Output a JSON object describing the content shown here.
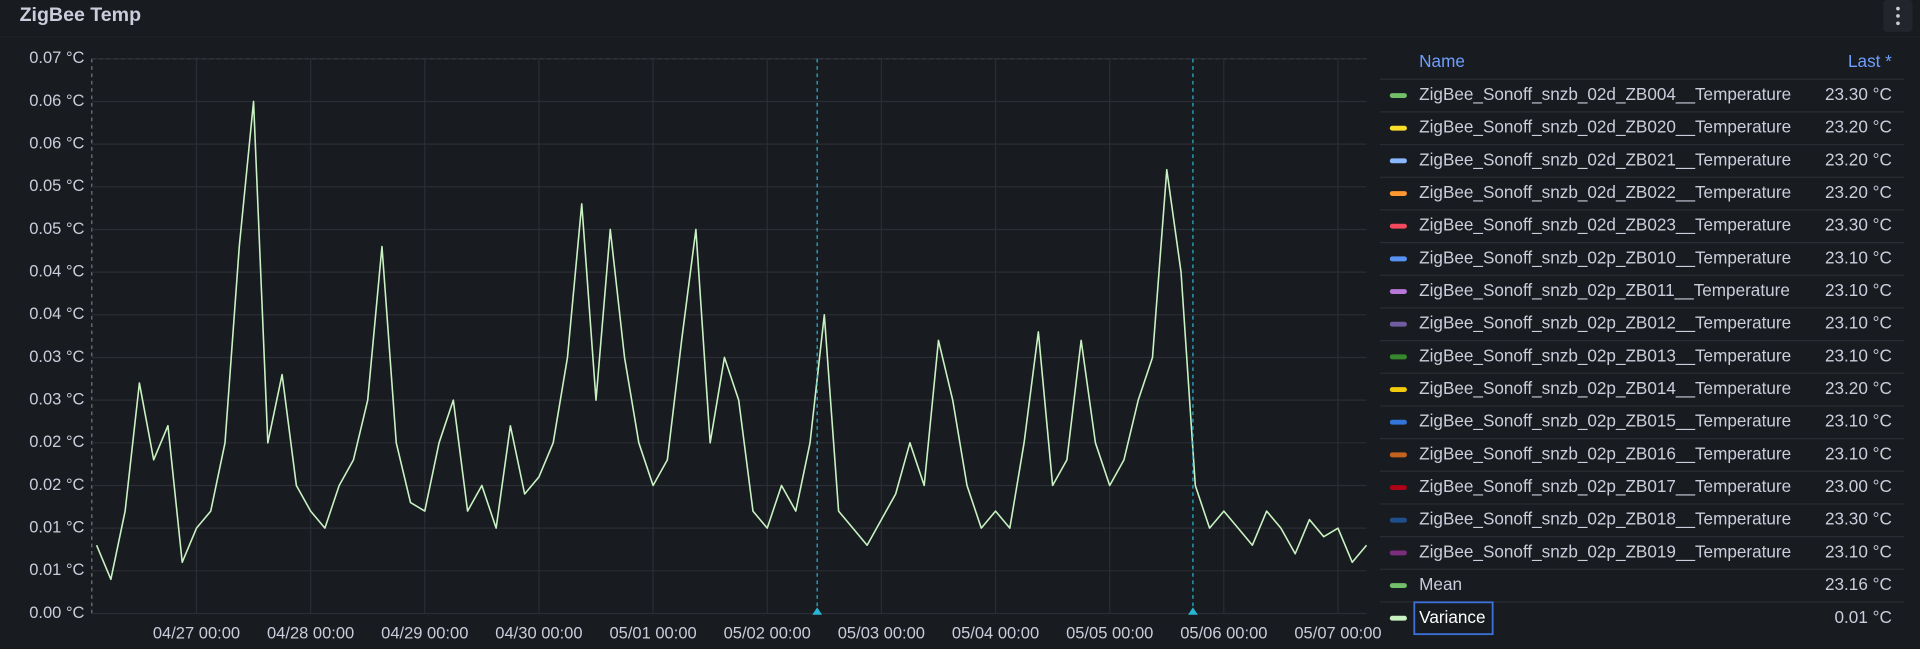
{
  "panel_title": "ZigBee Temp",
  "chart_data": {
    "type": "line",
    "legend_columns": [
      "Name",
      "Last *"
    ],
    "series": [
      {
        "name": "ZigBee_Sonoff_snzb_02d_ZB004__Temperature",
        "color": "#73bf69",
        "last": "23.30 °C"
      },
      {
        "name": "ZigBee_Sonoff_snzb_02d_ZB020__Temperature",
        "color": "#fade2a",
        "last": "23.20 °C"
      },
      {
        "name": "ZigBee_Sonoff_snzb_02d_ZB021__Temperature",
        "color": "#8ab8ff",
        "last": "23.20 °C"
      },
      {
        "name": "ZigBee_Sonoff_snzb_02d_ZB022__Temperature",
        "color": "#ff9830",
        "last": "23.20 °C"
      },
      {
        "name": "ZigBee_Sonoff_snzb_02d_ZB023__Temperature",
        "color": "#f2495c",
        "last": "23.30 °C"
      },
      {
        "name": "ZigBee_Sonoff_snzb_02p_ZB010__Temperature",
        "color": "#5794f2",
        "last": "23.10 °C"
      },
      {
        "name": "ZigBee_Sonoff_snzb_02p_ZB011__Temperature",
        "color": "#b877d9",
        "last": "23.10 °C"
      },
      {
        "name": "ZigBee_Sonoff_snzb_02p_ZB012__Temperature",
        "color": "#705da0",
        "last": "23.10 °C"
      },
      {
        "name": "ZigBee_Sonoff_snzb_02p_ZB013__Temperature",
        "color": "#37872d",
        "last": "23.10 °C"
      },
      {
        "name": "ZigBee_Sonoff_snzb_02p_ZB014__Temperature",
        "color": "#f2cc0c",
        "last": "23.20 °C"
      },
      {
        "name": "ZigBee_Sonoff_snzb_02p_ZB015__Temperature",
        "color": "#3274d9",
        "last": "23.10 °C"
      },
      {
        "name": "ZigBee_Sonoff_snzb_02p_ZB016__Temperature",
        "color": "#c4621f",
        "last": "23.10 °C"
      },
      {
        "name": "ZigBee_Sonoff_snzb_02p_ZB017__Temperature",
        "color": "#ad0317",
        "last": "23.00 °C"
      },
      {
        "name": "ZigBee_Sonoff_snzb_02p_ZB018__Temperature",
        "color": "#1f4f8c",
        "last": "23.30 °C"
      },
      {
        "name": "ZigBee_Sonoff_snzb_02p_ZB019__Temperature",
        "color": "#7c2e7e",
        "last": "23.10 °C"
      },
      {
        "name": "Mean",
        "color": "#73bf69",
        "last": "23.16 °C"
      },
      {
        "name": "Variance",
        "color": "#c8f2c2",
        "last": "0.01 °C",
        "values": [
          0.008,
          0.004,
          0.012,
          0.027,
          0.018,
          0.022,
          0.006,
          0.01,
          0.012,
          0.02,
          0.043,
          0.06,
          0.02,
          0.028,
          0.015,
          0.012,
          0.01,
          0.015,
          0.018,
          0.025,
          0.043,
          0.02,
          0.013,
          0.012,
          0.02,
          0.025,
          0.012,
          0.015,
          0.01,
          0.022,
          0.014,
          0.016,
          0.02,
          0.03,
          0.048,
          0.025,
          0.045,
          0.03,
          0.02,
          0.015,
          0.018,
          0.032,
          0.045,
          0.02,
          0.03,
          0.025,
          0.012,
          0.01,
          0.015,
          0.012,
          0.02,
          0.035,
          0.012,
          0.01,
          0.008,
          0.011,
          0.014,
          0.02,
          0.015,
          0.032,
          0.025,
          0.015,
          0.01,
          0.012,
          0.01,
          0.02,
          0.033,
          0.015,
          0.018,
          0.032,
          0.02,
          0.015,
          0.018,
          0.025,
          0.03,
          0.052,
          0.04,
          0.015,
          0.01,
          0.012,
          0.01,
          0.008,
          0.012,
          0.01,
          0.007,
          0.011,
          0.009,
          0.01,
          0.006,
          0.008
        ]
      }
    ],
    "x": [
      "04/26 03:00",
      "04/26 06:00",
      "04/26 09:00",
      "04/26 12:00",
      "04/26 15:00",
      "04/26 18:00",
      "04/26 21:00",
      "04/27 00:00",
      "04/27 03:00",
      "04/27 06:00",
      "04/27 09:00",
      "04/27 12:00",
      "04/27 15:00",
      "04/27 18:00",
      "04/27 21:00",
      "04/28 00:00",
      "04/28 03:00",
      "04/28 06:00",
      "04/28 09:00",
      "04/28 12:00",
      "04/28 15:00",
      "04/28 18:00",
      "04/28 21:00",
      "04/29 00:00",
      "04/29 03:00",
      "04/29 06:00",
      "04/29 09:00",
      "04/29 12:00",
      "04/29 15:00",
      "04/29 18:00",
      "04/29 21:00",
      "04/30 00:00",
      "04/30 03:00",
      "04/30 06:00",
      "04/30 09:00",
      "04/30 12:00",
      "04/30 15:00",
      "04/30 18:00",
      "04/30 21:00",
      "05/01 00:00",
      "05/01 03:00",
      "05/01 06:00",
      "05/01 09:00",
      "05/01 12:00",
      "05/01 15:00",
      "05/01 18:00",
      "05/01 21:00",
      "05/02 00:00",
      "05/02 03:00",
      "05/02 06:00",
      "05/02 09:00",
      "05/02 12:00",
      "05/02 15:00",
      "05/02 18:00",
      "05/02 21:00",
      "05/03 00:00",
      "05/03 03:00",
      "05/03 06:00",
      "05/03 09:00",
      "05/03 12:00",
      "05/03 15:00",
      "05/03 18:00",
      "05/03 21:00",
      "05/04 00:00",
      "05/04 03:00",
      "05/04 06:00",
      "05/04 09:00",
      "05/04 12:00",
      "05/04 15:00",
      "05/04 18:00",
      "05/04 21:00",
      "05/05 00:00",
      "05/05 03:00",
      "05/05 06:00",
      "05/05 09:00",
      "05/05 12:00",
      "05/05 15:00",
      "05/05 18:00",
      "05/05 21:00",
      "05/06 00:00",
      "05/06 03:00",
      "05/06 06:00",
      "05/06 09:00",
      "05/06 12:00",
      "05/06 15:00",
      "05/06 18:00",
      "05/06 21:00",
      "05/07 00:00",
      "05/07 03:00",
      "05/07 06:00"
    ],
    "xlim": [
      "04/26 02:00",
      "05/07 06:00"
    ],
    "xticks": [
      "04/27 00:00",
      "04/28 00:00",
      "04/29 00:00",
      "04/30 00:00",
      "05/01 00:00",
      "05/02 00:00",
      "05/03 00:00",
      "05/04 00:00",
      "05/05 00:00",
      "05/06 00:00",
      "05/07 00:00"
    ],
    "markers": [
      "05/02 10:30",
      "05/05 17:30"
    ],
    "ylim": [
      0,
      0.065
    ],
    "yticks": [
      {
        "value": 0,
        "label": "0.00 °C"
      },
      {
        "value": 0.005,
        "label": "0.01 °C"
      },
      {
        "value": 0.01,
        "label": "0.01 °C"
      },
      {
        "value": 0.015,
        "label": "0.02 °C"
      },
      {
        "value": 0.02,
        "label": "0.02 °C"
      },
      {
        "value": 0.025,
        "label": "0.03 °C"
      },
      {
        "value": 0.03,
        "label": "0.03 °C"
      },
      {
        "value": 0.035,
        "label": "0.04 °C"
      },
      {
        "value": 0.04,
        "label": "0.04 °C"
      },
      {
        "value": 0.045,
        "label": "0.05 °C"
      },
      {
        "value": 0.05,
        "label": "0.05 °C"
      },
      {
        "value": 0.055,
        "label": "0.06 °C"
      },
      {
        "value": 0.06,
        "label": "0.06 °C"
      },
      {
        "value": 0.065,
        "label": "0.07 °C"
      }
    ],
    "grid": true
  }
}
